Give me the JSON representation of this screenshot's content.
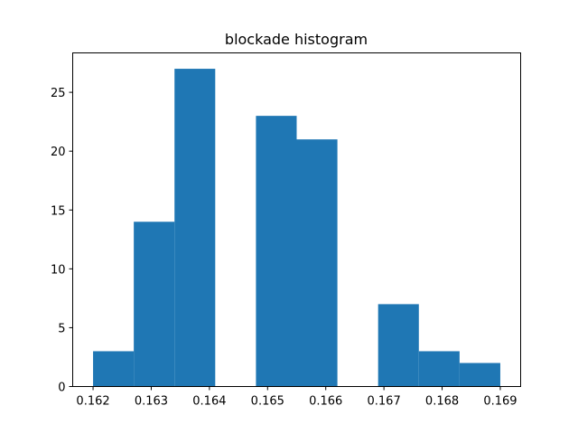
{
  "chart_data": {
    "type": "bar",
    "title": "blockade histogram",
    "xlabel": "",
    "ylabel": "",
    "bin_edges": [
      0.162,
      0.1627,
      0.1634,
      0.1641,
      0.1648,
      0.1655,
      0.1662,
      0.1669,
      0.1676,
      0.1683,
      0.169
    ],
    "values": [
      3,
      14,
      27,
      0,
      23,
      21,
      0,
      7,
      3,
      2
    ],
    "xlim": [
      0.16165,
      0.16935
    ],
    "ylim": [
      0,
      28.35
    ],
    "xticks": [
      0.162,
      0.163,
      0.164,
      0.165,
      0.166,
      0.167,
      0.168,
      0.169
    ],
    "xtick_labels": [
      "0.162",
      "0.163",
      "0.164",
      "0.165",
      "0.166",
      "0.167",
      "0.168",
      "0.169"
    ],
    "yticks": [
      0,
      5,
      10,
      15,
      20,
      25
    ],
    "ytick_labels": [
      "0",
      "5",
      "10",
      "15",
      "20",
      "25"
    ],
    "bar_color": "#1f77b4",
    "grid": false,
    "legend": "none"
  }
}
